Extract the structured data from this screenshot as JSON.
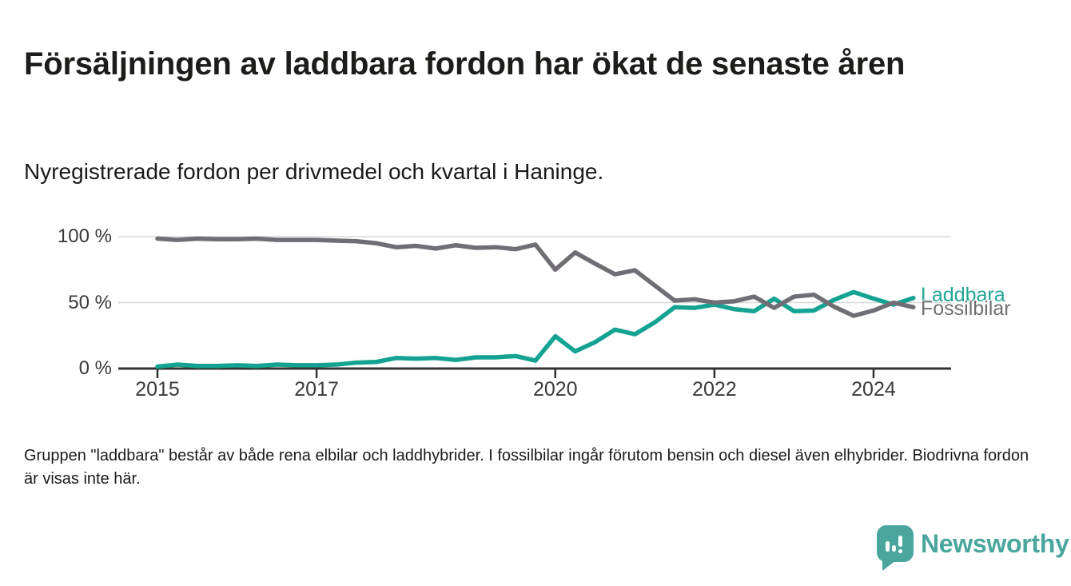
{
  "title": "Försäljningen av laddbara fordon har ökat de senaste åren",
  "subtitle": "Nyregistrerade fordon per drivmedel och kvartal i Haninge.",
  "footnote": "Gruppen \"laddbara\" består av både rena elbilar och laddhybrider. I fossilbilar ingår förutom bensin och diesel även elhybrider. Biodrivna fordon är visas inte här.",
  "branding": {
    "name": "Newsworthy",
    "color": "#4aa69d"
  },
  "chart_data": {
    "type": "line",
    "title": "Försäljningen av laddbara fordon har ökat de senaste åren",
    "subtitle": "Nyregistrerade fordon per drivmedel och kvartal i Haninge.",
    "x_unit": "quarter",
    "ylim": [
      0,
      100
    ],
    "grid": true,
    "legend_position": "end-of-line",
    "categories": [
      "2015 Q1",
      "2015 Q2",
      "2015 Q3",
      "2015 Q4",
      "2016 Q1",
      "2016 Q2",
      "2016 Q3",
      "2016 Q4",
      "2017 Q1",
      "2017 Q2",
      "2017 Q3",
      "2017 Q4",
      "2018 Q1",
      "2018 Q2",
      "2018 Q3",
      "2018 Q4",
      "2019 Q1",
      "2019 Q2",
      "2019 Q3",
      "2019 Q4",
      "2020 Q1",
      "2020 Q2",
      "2020 Q3",
      "2020 Q4",
      "2021 Q1",
      "2021 Q2",
      "2021 Q3",
      "2021 Q4",
      "2022 Q1",
      "2022 Q2",
      "2022 Q3",
      "2022 Q4",
      "2023 Q1",
      "2023 Q2",
      "2023 Q3",
      "2023 Q4",
      "2024 Q1",
      "2024 Q2",
      "2024 Q3"
    ],
    "series": [
      {
        "name": "Laddbara",
        "color": "#14a392",
        "label_color": "#23a795",
        "values": [
          1.5,
          3,
          2,
          2,
          2.5,
          2,
          3,
          2.5,
          2.5,
          3,
          4.5,
          5,
          8,
          7.5,
          8,
          6.5,
          8.5,
          8.5,
          9.5,
          6,
          24.5,
          13,
          20,
          29.5,
          26,
          35,
          46.5,
          46,
          48.5,
          45,
          43.5,
          53,
          43.5,
          44,
          52,
          58,
          53,
          48.5,
          53.5
        ]
      },
      {
        "name": "Fossilbilar",
        "color": "#716d74",
        "label_color": "#716d74",
        "values": [
          98.5,
          97.5,
          98.5,
          98,
          98,
          98.5,
          97.5,
          97.5,
          97.5,
          97,
          96.5,
          95,
          92,
          93,
          91,
          93.5,
          91.5,
          92,
          90.5,
          94,
          75,
          88,
          79.5,
          71.5,
          74.5,
          63,
          51.5,
          52.5,
          50,
          51,
          54.5,
          46,
          54.5,
          56,
          47,
          40,
          44,
          50,
          46.5
        ]
      }
    ],
    "yticks": [
      {
        "value": 100,
        "label": "100 %"
      },
      {
        "value": 50,
        "label": "50 %"
      },
      {
        "value": 0,
        "label": "0 %"
      }
    ],
    "xticks": [
      {
        "index": 0,
        "label": "2015"
      },
      {
        "index": 8,
        "label": "2017"
      },
      {
        "index": 20,
        "label": "2020"
      },
      {
        "index": 28,
        "label": "2022"
      },
      {
        "index": 36,
        "label": "2024"
      }
    ]
  }
}
